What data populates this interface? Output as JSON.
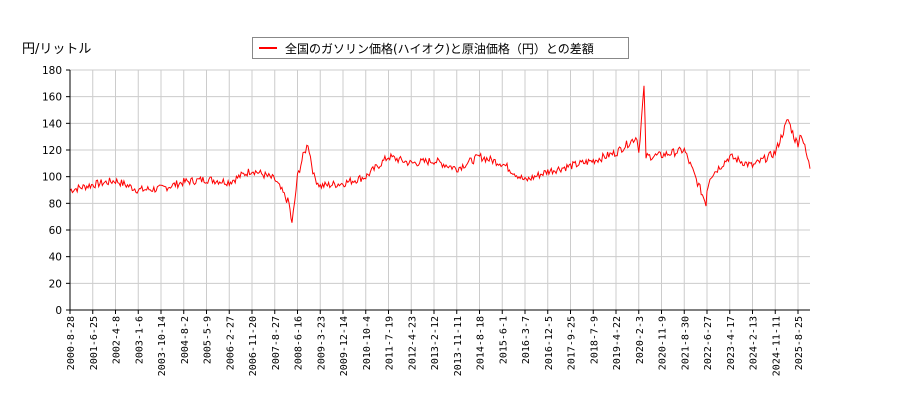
{
  "chart_data": {
    "type": "line",
    "title": "",
    "ylabel": "円/リットル",
    "xlabel": "",
    "ylim": [
      0,
      180
    ],
    "yticks": [
      0,
      20,
      40,
      60,
      80,
      100,
      120,
      140,
      160,
      180
    ],
    "grid": true,
    "legend_position": "top-center",
    "legend": [
      "全国のガソリン価格(ハイオク)と原油価格（円）との差額"
    ],
    "x_tick_labels": [
      "2000-8-28",
      "2001-6-25",
      "2002-4-8",
      "2003-1-6",
      "2003-10-14",
      "2004-8-2",
      "2005-5-9",
      "2006-2-27",
      "2006-11-20",
      "2007-8-27",
      "2008-6-16",
      "2009-3-23",
      "2009-12-14",
      "2010-10-4",
      "2011-7-19",
      "2012-4-23",
      "2013-2-12",
      "2013-11-11",
      "2014-8-18",
      "2015-6-1",
      "2016-3-7",
      "2016-12-5",
      "2017-9-25",
      "2018-7-9",
      "2019-4-22",
      "2020-2-3",
      "2020-11-9",
      "2021-8-30",
      "2022-6-27",
      "2023-4-17",
      "2024-2-13",
      "2024-11-11",
      "2025-8-25"
    ],
    "series": [
      {
        "name": "全国のガソリン価格(ハイオク)と原油価格（円）との差額",
        "color": "#ff0000",
        "points_by_tick": [
          {
            "x": "2000-8-28",
            "y": 90
          },
          {
            "x": "2001-6-25",
            "y": 94
          },
          {
            "x": "2002-4-8",
            "y": 97
          },
          {
            "x": "2003-1-6",
            "y": 90
          },
          {
            "x": "2003-10-14",
            "y": 91
          },
          {
            "x": "2004-8-2",
            "y": 96
          },
          {
            "x": "2005-5-9",
            "y": 98
          },
          {
            "x": "2006-2-27",
            "y": 96
          },
          {
            "x": "2006-11-20",
            "y": 105
          },
          {
            "x": "2007-8-27",
            "y": 98
          },
          {
            "x": "2008-6-16",
            "y": 100
          },
          {
            "x": "2009-3-23",
            "y": 93
          },
          {
            "x": "2009-12-14",
            "y": 95
          },
          {
            "x": "2010-10-4",
            "y": 100
          },
          {
            "x": "2011-7-19",
            "y": 115
          },
          {
            "x": "2012-4-23",
            "y": 110
          },
          {
            "x": "2013-2-12",
            "y": 112
          },
          {
            "x": "2013-11-11",
            "y": 106
          },
          {
            "x": "2014-8-18",
            "y": 115
          },
          {
            "x": "2015-6-1",
            "y": 110
          },
          {
            "x": "2016-3-7",
            "y": 97
          },
          {
            "x": "2016-12-5",
            "y": 104
          },
          {
            "x": "2017-9-25",
            "y": 108
          },
          {
            "x": "2018-7-9",
            "y": 112
          },
          {
            "x": "2019-4-22",
            "y": 118
          },
          {
            "x": "2020-2-3",
            "y": 118
          },
          {
            "x": "2020-11-9",
            "y": 116
          },
          {
            "x": "2021-8-30",
            "y": 120
          },
          {
            "x": "2022-6-27",
            "y": 90
          },
          {
            "x": "2023-4-17",
            "y": 115
          },
          {
            "x": "2024-2-13",
            "y": 108
          },
          {
            "x": "2024-11-11",
            "y": 118
          },
          {
            "x": "2025-8-25",
            "y": 125
          }
        ],
        "notable": {
          "min": {
            "approx_date": "2008-12",
            "y": 64
          },
          "max": {
            "approx_date": "2020-04",
            "y": 167
          },
          "last": {
            "approx_date": "2025-10",
            "y": 106
          }
        }
      }
    ]
  },
  "header": {
    "unit_label": "円/リットル",
    "legend_label": "全国のガソリン価格(ハイオク)と原油価格（円）との差額"
  }
}
